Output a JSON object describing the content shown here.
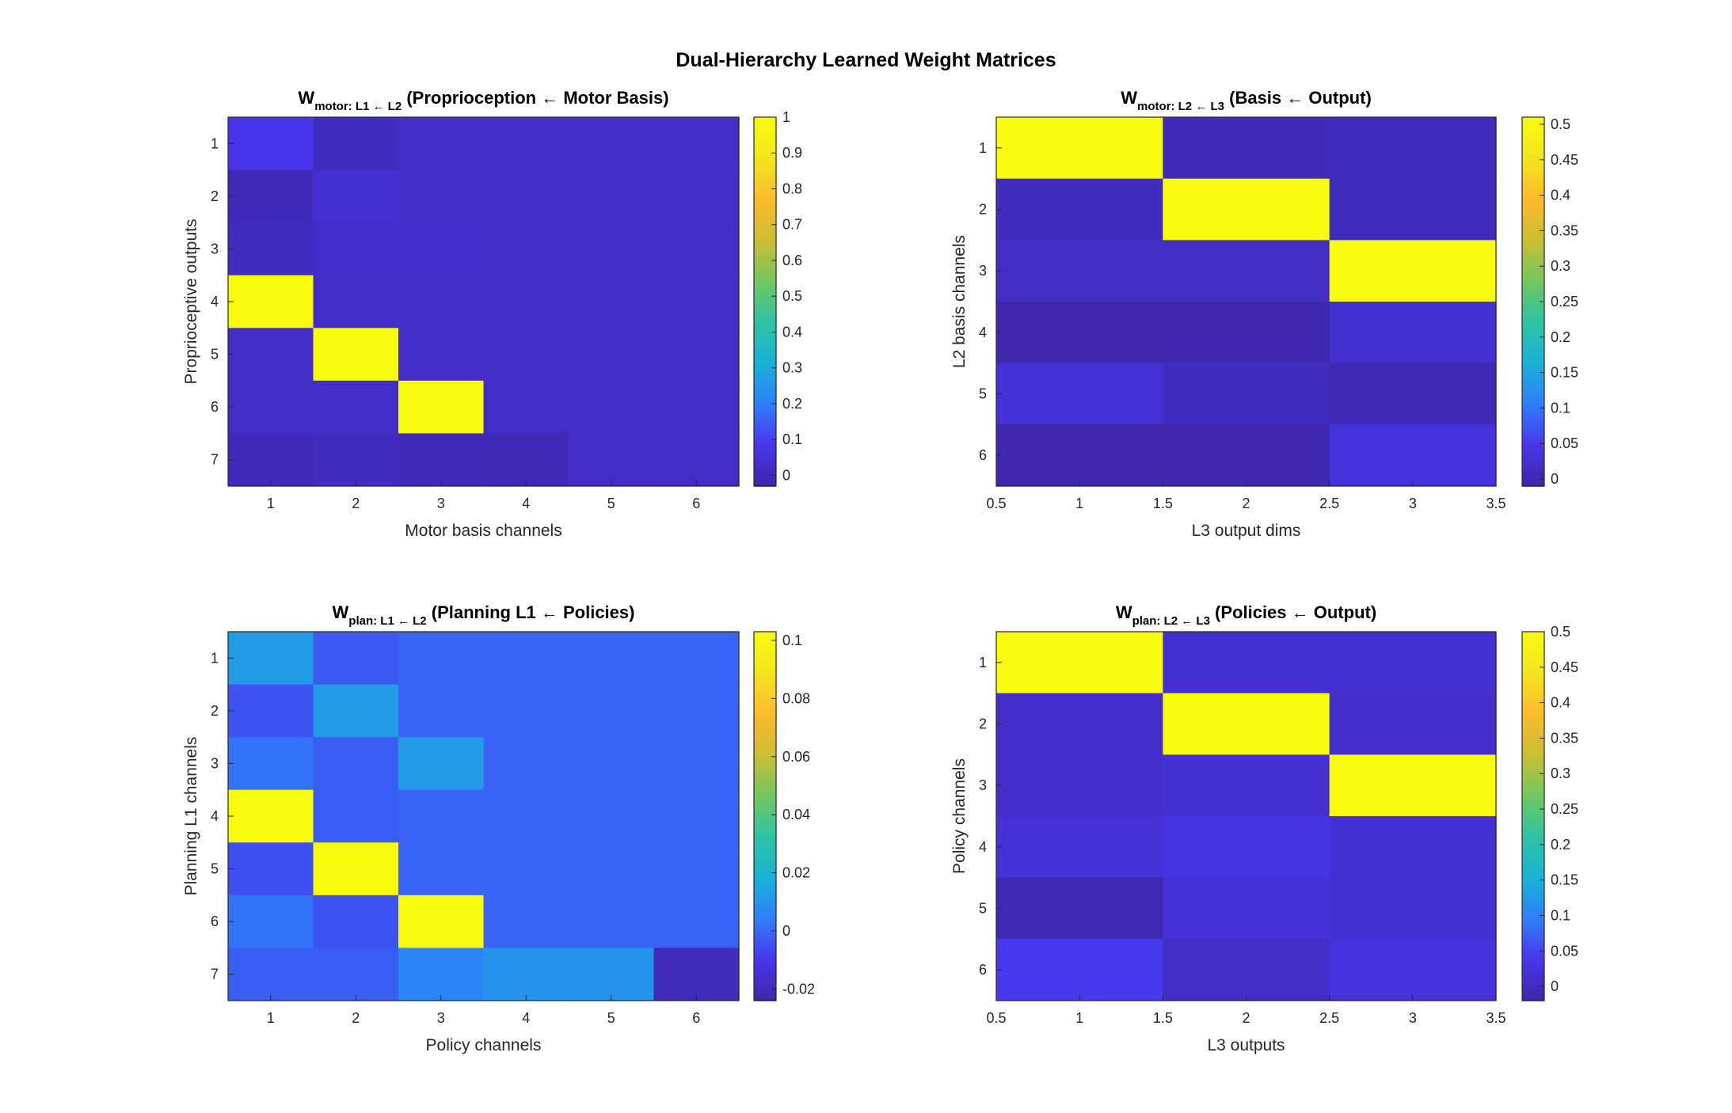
{
  "figure_title": "Dual-Hierarchy Learned Weight Matrices",
  "colormap": [
    "#3e26a8",
    "#4836ec",
    "#2f7efb",
    "#1ab2d6",
    "#2ec3a4",
    "#71c85e",
    "#cbbe33",
    "#fdbb2c",
    "#f4e51e",
    "#f9fb0e"
  ],
  "chart_data": [
    {
      "type": "heatmap",
      "title": {
        "main": "W",
        "sub": "motor: L1 ← L2",
        "rest": " (Proprioception ← Motor Basis)"
      },
      "xlabel": "Motor basis channels",
      "ylabel": "Proprioceptive outputs",
      "x_ticks": [
        "1",
        "2",
        "3",
        "4",
        "5",
        "6"
      ],
      "y_ticks": [
        "1",
        "2",
        "3",
        "4",
        "5",
        "6",
        "7"
      ],
      "x": [
        1,
        2,
        3,
        4,
        5,
        6
      ],
      "y": [
        1,
        2,
        3,
        4,
        5,
        6,
        7
      ],
      "z": [
        [
          0.08,
          0.01,
          0.02,
          0.02,
          0.02,
          0.02
        ],
        [
          0.0,
          0.04,
          0.02,
          0.02,
          0.02,
          0.02
        ],
        [
          0.01,
          0.03,
          0.03,
          0.02,
          0.02,
          0.02
        ],
        [
          1.0,
          0.02,
          0.02,
          0.02,
          0.02,
          0.02
        ],
        [
          0.02,
          1.0,
          0.02,
          0.02,
          0.02,
          0.02
        ],
        [
          0.02,
          0.02,
          1.0,
          0.02,
          0.02,
          0.02
        ],
        [
          0.0,
          0.01,
          0.0,
          -0.01,
          0.02,
          0.02
        ]
      ],
      "clim": [
        -0.03,
        1.0
      ],
      "colorbar_ticks": [
        "0",
        "0.1",
        "0.2",
        "0.3",
        "0.4",
        "0.5",
        "0.6",
        "0.7",
        "0.8",
        "0.9",
        "1"
      ],
      "colorbar_values": [
        0,
        0.1,
        0.2,
        0.3,
        0.4,
        0.5,
        0.6,
        0.7,
        0.8,
        0.9,
        1
      ]
    },
    {
      "type": "heatmap",
      "title": {
        "main": "W",
        "sub": "motor: L2 ← L3",
        "rest": " (Basis ← Output)"
      },
      "xlabel": "L3 output dims",
      "ylabel": "L2 basis channels",
      "x_ticks": [
        "0.5",
        "1",
        "1.5",
        "2",
        "2.5",
        "3",
        "3.5"
      ],
      "x_tick_values": [
        0.5,
        1,
        1.5,
        2,
        2.5,
        3,
        3.5
      ],
      "xlim": [
        0.5,
        3.5
      ],
      "y_ticks": [
        "1",
        "2",
        "3",
        "4",
        "5",
        "6"
      ],
      "x": [
        1,
        2,
        3
      ],
      "y": [
        1,
        2,
        3,
        4,
        5,
        6
      ],
      "z": [
        [
          0.51,
          0.005,
          0.01
        ],
        [
          0.01,
          0.51,
          0.01
        ],
        [
          0.015,
          0.015,
          0.51
        ],
        [
          -0.005,
          -0.005,
          0.025
        ],
        [
          0.03,
          0.01,
          0.0
        ],
        [
          -0.005,
          -0.005,
          0.035
        ]
      ],
      "clim": [
        -0.01,
        0.51
      ],
      "colorbar_ticks": [
        "0",
        "0.05",
        "0.1",
        "0.15",
        "0.2",
        "0.25",
        "0.3",
        "0.35",
        "0.4",
        "0.45",
        "0.5"
      ],
      "colorbar_values": [
        0,
        0.05,
        0.1,
        0.15,
        0.2,
        0.25,
        0.3,
        0.35,
        0.4,
        0.45,
        0.5
      ]
    },
    {
      "type": "heatmap",
      "title": {
        "main": "W",
        "sub": "plan: L1 ← L2",
        "rest": " (Planning L1 ← Policies)"
      },
      "xlabel": "Policy channels",
      "ylabel": "Planning L1 channels",
      "x_ticks": [
        "1",
        "2",
        "3",
        "4",
        "5",
        "6"
      ],
      "y_ticks": [
        "1",
        "2",
        "3",
        "4",
        "5",
        "6",
        "7"
      ],
      "x": [
        1,
        2,
        3,
        4,
        5,
        6
      ],
      "y": [
        1,
        2,
        3,
        4,
        5,
        6,
        7
      ],
      "z": [
        [
          0.012,
          -0.003,
          -0.001,
          -0.001,
          -0.001,
          -0.001
        ],
        [
          -0.004,
          0.012,
          -0.001,
          -0.001,
          -0.001,
          -0.001
        ],
        [
          0.002,
          -0.002,
          0.012,
          -0.001,
          -0.001,
          -0.001
        ],
        [
          0.105,
          -0.002,
          -0.001,
          -0.001,
          -0.001,
          -0.001
        ],
        [
          -0.005,
          0.105,
          -0.001,
          -0.001,
          -0.001,
          -0.001
        ],
        [
          0.002,
          -0.004,
          0.105,
          -0.001,
          -0.001,
          -0.001
        ],
        [
          -0.002,
          -0.002,
          0.006,
          0.01,
          0.01,
          -0.02
        ]
      ],
      "clim": [
        -0.024,
        0.103
      ],
      "colorbar_ticks": [
        "-0.02",
        "0",
        "0.02",
        "0.04",
        "0.06",
        "0.08",
        "0.1"
      ],
      "colorbar_values": [
        -0.02,
        0,
        0.02,
        0.04,
        0.06,
        0.08,
        0.1
      ]
    },
    {
      "type": "heatmap",
      "title": {
        "main": "W",
        "sub": "plan: L2 ← L3",
        "rest": " (Policies ← Output)"
      },
      "xlabel": "L3 outputs",
      "ylabel": "Policy channels",
      "x_ticks": [
        "0.5",
        "1",
        "1.5",
        "2",
        "2.5",
        "3",
        "3.5"
      ],
      "x_tick_values": [
        0.5,
        1,
        1.5,
        2,
        2.5,
        3,
        3.5
      ],
      "xlim": [
        0.5,
        3.5
      ],
      "y_ticks": [
        "1",
        "2",
        "3",
        "4",
        "5",
        "6"
      ],
      "x": [
        1,
        2,
        3
      ],
      "y": [
        1,
        2,
        3,
        4,
        5,
        6
      ],
      "z": [
        [
          0.5,
          0.015,
          0.015
        ],
        [
          0.01,
          0.5,
          0.01
        ],
        [
          0.01,
          0.015,
          0.5
        ],
        [
          0.02,
          0.03,
          0.015
        ],
        [
          -0.01,
          0.02,
          0.015
        ],
        [
          0.04,
          0.005,
          0.025
        ]
      ],
      "clim": [
        -0.02,
        0.5
      ],
      "colorbar_ticks": [
        "0",
        "0.05",
        "0.1",
        "0.15",
        "0.2",
        "0.25",
        "0.3",
        "0.35",
        "0.4",
        "0.45",
        "0.5"
      ],
      "colorbar_values": [
        0,
        0.05,
        0.1,
        0.15,
        0.2,
        0.25,
        0.3,
        0.35,
        0.4,
        0.45,
        0.5
      ]
    }
  ]
}
